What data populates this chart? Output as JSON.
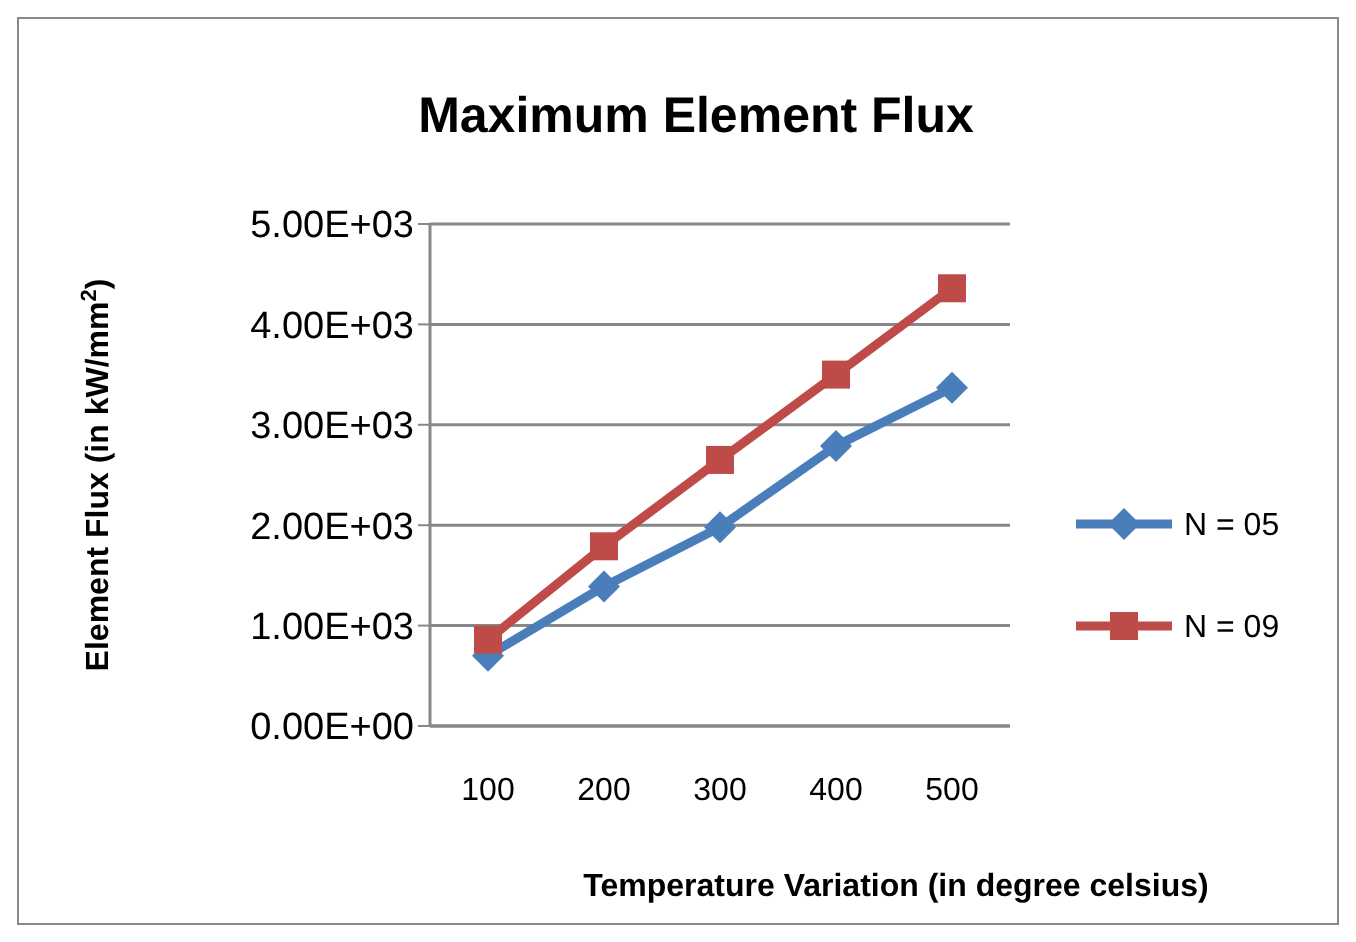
{
  "chart_data": {
    "type": "line",
    "title": "Maximum Element Flux",
    "xlabel": "Temperature Variation (in degree celsius)",
    "ylabel": "Element Flux (in kW/mm$^{2}$)",
    "categories": [
      "100",
      "200",
      "300",
      "400",
      "500"
    ],
    "series": [
      {
        "name": "N = 05",
        "color": "#4a7ebb",
        "marker": "diamond",
        "values": [
          700,
          1390,
          1980,
          2790,
          3370
        ]
      },
      {
        "name": "N = 09",
        "color": "#be4b48",
        "marker": "square",
        "values": [
          860,
          1790,
          2650,
          3500,
          4360
        ]
      }
    ],
    "ylim": [
      0,
      5000
    ],
    "yticks": [
      {
        "value": 0,
        "label": "0.00E+00"
      },
      {
        "value": 1000,
        "label": "1.00E+03"
      },
      {
        "value": 2000,
        "label": "2.00E+03"
      },
      {
        "value": 3000,
        "label": "3.00E+03"
      },
      {
        "value": 4000,
        "label": "4.00E+03"
      },
      {
        "value": 5000,
        "label": "5.00E+03"
      }
    ],
    "grid": "y",
    "legend": "right",
    "line_style": "solid"
  }
}
